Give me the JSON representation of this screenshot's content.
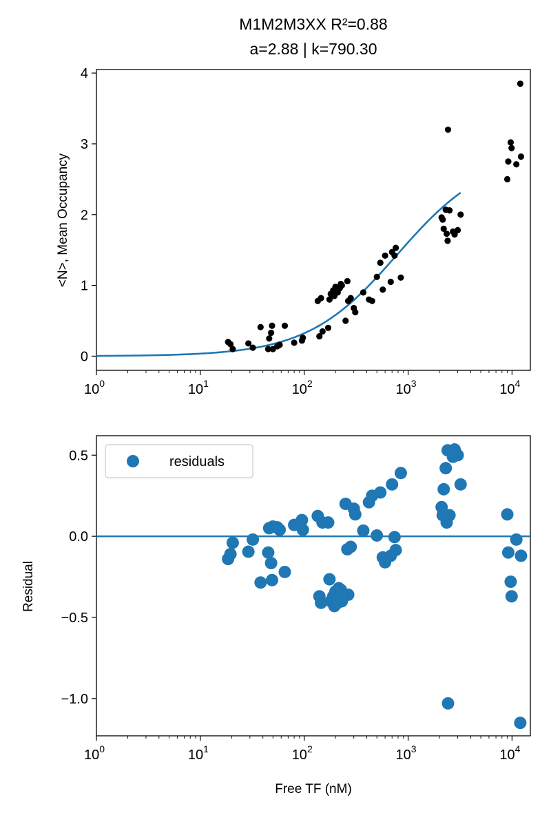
{
  "chart_data": [
    {
      "type": "scatter",
      "title": "M1M2M3XX R²=0.88",
      "subtitle": "a=2.88 | k=790.30",
      "xlabel": "",
      "ylabel": "<N>, Mean Occupancy",
      "xscale": "log",
      "xlim": [
        1,
        15000
      ],
      "ylim": [
        -0.2,
        4.05
      ],
      "x_ticks": [
        1,
        10,
        100,
        1000,
        10000
      ],
      "x_tick_labels": [
        {
          "base": "10",
          "exp": "0"
        },
        {
          "base": "10",
          "exp": "1"
        },
        {
          "base": "10",
          "exp": "2"
        },
        {
          "base": "10",
          "exp": "3"
        },
        {
          "base": "10",
          "exp": "4"
        }
      ],
      "y_ticks": [
        0,
        1,
        2,
        3,
        4
      ],
      "y_tick_labels": [
        "0",
        "1",
        "2",
        "3",
        "4"
      ],
      "grid": false,
      "colors": {
        "points": "#000000",
        "fit": "#1f77b4"
      },
      "fit_params": {
        "a": 2.88,
        "k": 790.3
      },
      "fit_x_range": [
        1,
        3200
      ],
      "points": [
        [
          18.5,
          0.2
        ],
        [
          19.5,
          0.17
        ],
        [
          20.5,
          0.1
        ],
        [
          29,
          0.18
        ],
        [
          32,
          0.12
        ],
        [
          38,
          0.41
        ],
        [
          45,
          0.1
        ],
        [
          46,
          0.25
        ],
        [
          48,
          0.33
        ],
        [
          49,
          0.43
        ],
        [
          50,
          0.1
        ],
        [
          55,
          0.14
        ],
        [
          58,
          0.16
        ],
        [
          65,
          0.43
        ],
        [
          80,
          0.19
        ],
        [
          95,
          0.22
        ],
        [
          97,
          0.26
        ],
        [
          135,
          0.78
        ],
        [
          140,
          0.28
        ],
        [
          145,
          0.82
        ],
        [
          150,
          0.35
        ],
        [
          170,
          0.4
        ],
        [
          175,
          0.8
        ],
        [
          180,
          0.88
        ],
        [
          190,
          0.93
        ],
        [
          195,
          0.85
        ],
        [
          200,
          0.98
        ],
        [
          210,
          0.9
        ],
        [
          215,
          0.95
        ],
        [
          220,
          0.96
        ],
        [
          225,
          1.02
        ],
        [
          230,
          1.0
        ],
        [
          250,
          0.5
        ],
        [
          260,
          1.06
        ],
        [
          265,
          0.78
        ],
        [
          280,
          0.82
        ],
        [
          300,
          0.68
        ],
        [
          310,
          0.62
        ],
        [
          370,
          0.9
        ],
        [
          420,
          0.8
        ],
        [
          450,
          0.78
        ],
        [
          500,
          1.12
        ],
        [
          540,
          1.32
        ],
        [
          570,
          0.94
        ],
        [
          600,
          1.42
        ],
        [
          680,
          1.05
        ],
        [
          700,
          1.47
        ],
        [
          740,
          1.42
        ],
        [
          760,
          1.53
        ],
        [
          850,
          1.11
        ],
        [
          2100,
          1.96
        ],
        [
          2150,
          1.93
        ],
        [
          2200,
          1.8
        ],
        [
          2300,
          2.07
        ],
        [
          2350,
          1.73
        ],
        [
          2400,
          1.63
        ],
        [
          2420,
          3.2
        ],
        [
          2500,
          2.06
        ],
        [
          2700,
          1.76
        ],
        [
          2800,
          1.72
        ],
        [
          3000,
          1.78
        ],
        [
          3200,
          2.0
        ],
        [
          9000,
          2.5
        ],
        [
          9200,
          2.75
        ],
        [
          9700,
          3.02
        ],
        [
          9900,
          2.94
        ],
        [
          11000,
          2.71
        ],
        [
          12000,
          3.85
        ],
        [
          12200,
          2.82
        ]
      ]
    },
    {
      "type": "scatter",
      "title": "",
      "xlabel": "Free TF (nM)",
      "ylabel": "Residual",
      "xscale": "log",
      "xlim": [
        1,
        15000
      ],
      "ylim": [
        -1.23,
        0.62
      ],
      "x_ticks": [
        1,
        10,
        100,
        1000,
        10000
      ],
      "x_tick_labels": [
        {
          "base": "10",
          "exp": "0"
        },
        {
          "base": "10",
          "exp": "1"
        },
        {
          "base": "10",
          "exp": "2"
        },
        {
          "base": "10",
          "exp": "3"
        },
        {
          "base": "10",
          "exp": "4"
        }
      ],
      "y_ticks": [
        0.5,
        0.0,
        -0.5,
        -1.0
      ],
      "y_tick_labels": [
        "0.5",
        "0.0",
        "−0.5",
        "−1.0"
      ],
      "grid": false,
      "legend": {
        "position": "top-left",
        "entries": [
          "residuals"
        ]
      },
      "colors": {
        "points": "#1f77b4",
        "zero_line": "#1f77b4"
      },
      "reference_line_y": 0.0,
      "points": [
        [
          18.5,
          -0.14
        ],
        [
          19.5,
          -0.11
        ],
        [
          20.5,
          -0.04
        ],
        [
          29,
          -0.095
        ],
        [
          32,
          -0.02
        ],
        [
          38,
          -0.285
        ],
        [
          45,
          -0.1
        ],
        [
          46,
          0.05
        ],
        [
          48,
          -0.165
        ],
        [
          49,
          -0.27
        ],
        [
          50,
          0.06
        ],
        [
          55,
          0.055
        ],
        [
          58,
          0.04
        ],
        [
          65,
          -0.22
        ],
        [
          80,
          0.07
        ],
        [
          95,
          0.1
        ],
        [
          97,
          0.04
        ],
        [
          135,
          0.125
        ],
        [
          140,
          -0.37
        ],
        [
          145,
          -0.41
        ],
        [
          150,
          0.085
        ],
        [
          170,
          0.085
        ],
        [
          175,
          -0.265
        ],
        [
          180,
          -0.4
        ],
        [
          190,
          -0.37
        ],
        [
          195,
          -0.43
        ],
        [
          200,
          -0.34
        ],
        [
          210,
          -0.41
        ],
        [
          215,
          -0.32
        ],
        [
          220,
          -0.38
        ],
        [
          225,
          -0.33
        ],
        [
          230,
          -0.4
        ],
        [
          250,
          0.2
        ],
        [
          260,
          -0.08
        ],
        [
          265,
          -0.36
        ],
        [
          280,
          -0.065
        ],
        [
          300,
          0.17
        ],
        [
          310,
          0.135
        ],
        [
          370,
          0.035
        ],
        [
          420,
          0.21
        ],
        [
          450,
          0.25
        ],
        [
          500,
          0.005
        ],
        [
          540,
          0.27
        ],
        [
          570,
          -0.13
        ],
        [
          600,
          -0.16
        ],
        [
          680,
          -0.12
        ],
        [
          700,
          0.32
        ],
        [
          740,
          -0.005
        ],
        [
          760,
          -0.085
        ],
        [
          850,
          0.39
        ],
        [
          2100,
          0.18
        ],
        [
          2150,
          0.13
        ],
        [
          2200,
          0.29
        ],
        [
          2300,
          0.42
        ],
        [
          2350,
          0.085
        ],
        [
          2400,
          0.53
        ],
        [
          2420,
          -1.03
        ],
        [
          2500,
          0.13
        ],
        [
          2700,
          0.49
        ],
        [
          2800,
          0.535
        ],
        [
          3000,
          0.5
        ],
        [
          3200,
          0.32
        ],
        [
          9000,
          0.135
        ],
        [
          9200,
          -0.1
        ],
        [
          9700,
          -0.28
        ],
        [
          9900,
          -0.37
        ],
        [
          11000,
          -0.02
        ],
        [
          12000,
          -1.15
        ],
        [
          12200,
          -0.12
        ]
      ]
    }
  ]
}
